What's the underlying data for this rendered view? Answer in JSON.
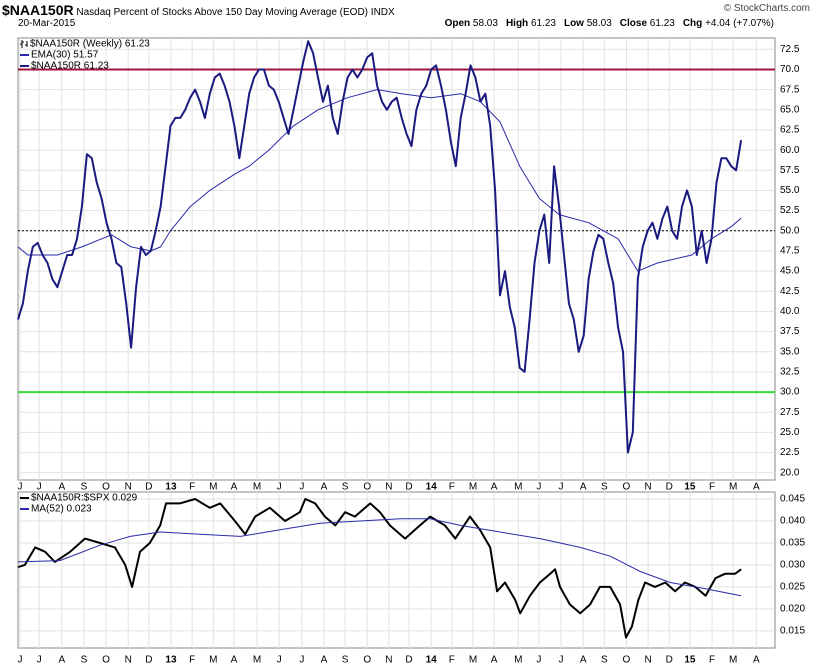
{
  "header": {
    "symbol": "$NAA150R",
    "description": "Nasdaq Percent of Stocks Above 150 Day Moving Average (EOD)",
    "exchange": "INDX",
    "date": "20-Mar-2015",
    "quote": [
      {
        "label": "Open",
        "value": 58.03
      },
      {
        "label": "High",
        "value": 61.23
      },
      {
        "label": "Low",
        "value": 58.03
      },
      {
        "label": "Close",
        "value": 61.23
      },
      {
        "label": "Chg",
        "value": "+4.04 (+7.07%)"
      }
    ],
    "credit": "© StockCharts.com"
  },
  "chart_data": [
    {
      "type": "line",
      "price_label": "$NAA150R (Weekly) 61.23",
      "xlim": [
        0,
        153.9
      ],
      "xticks": [
        {
          "value": 0.4,
          "label": "J"
        },
        {
          "value": 4.3,
          "label": "J"
        },
        {
          "value": 8.9,
          "label": "A"
        },
        {
          "value": 13.4,
          "label": "S"
        },
        {
          "value": 17.9,
          "label": "O"
        },
        {
          "value": 22.4,
          "label": "N"
        },
        {
          "value": 26.6,
          "label": "D"
        },
        {
          "value": 31.1,
          "label": "13"
        },
        {
          "value": 35.4,
          "label": "F"
        },
        {
          "value": 39.7,
          "label": "M"
        },
        {
          "value": 43.9,
          "label": "A"
        },
        {
          "value": 48.6,
          "label": "M"
        },
        {
          "value": 53.1,
          "label": "J"
        },
        {
          "value": 57.7,
          "label": "J"
        },
        {
          "value": 62.2,
          "label": "A"
        },
        {
          "value": 66.5,
          "label": "S"
        },
        {
          "value": 71,
          "label": "O"
        },
        {
          "value": 75.4,
          "label": "N"
        },
        {
          "value": 79.5,
          "label": "D"
        },
        {
          "value": 84,
          "label": "14"
        },
        {
          "value": 88.2,
          "label": "F"
        },
        {
          "value": 92.5,
          "label": "M"
        },
        {
          "value": 96.8,
          "label": "A"
        },
        {
          "value": 101.7,
          "label": "M"
        },
        {
          "value": 105.9,
          "label": "J"
        },
        {
          "value": 110.4,
          "label": "J"
        },
        {
          "value": 114.9,
          "label": "A"
        },
        {
          "value": 119.2,
          "label": "S"
        },
        {
          "value": 123.7,
          "label": "O"
        },
        {
          "value": 128.1,
          "label": "N"
        },
        {
          "value": 132.4,
          "label": "D"
        },
        {
          "value": 136.6,
          "label": "15"
        },
        {
          "value": 141.1,
          "label": "F"
        },
        {
          "value": 145.4,
          "label": "M"
        },
        {
          "value": 150.1,
          "label": "A"
        }
      ],
      "ylim": [
        19.1,
        73.9
      ],
      "yticks": [
        {
          "value": 20,
          "label": "20.0"
        },
        22.5,
        {
          "value": 25,
          "label": "25.0"
        },
        27.5,
        {
          "value": 30,
          "label": "30.0"
        },
        32.5,
        {
          "value": 35,
          "label": "35.0"
        },
        37.5,
        {
          "value": 40,
          "label": "40.0"
        },
        42.5,
        {
          "value": 45,
          "label": "45.0"
        },
        47.5,
        {
          "value": 50,
          "label": "50.0"
        },
        52.5,
        {
          "value": 55,
          "label": "55.0"
        },
        57.5,
        {
          "value": 60,
          "label": "60.0"
        },
        62.5,
        {
          "value": 65,
          "label": "65.0"
        },
        67.5,
        {
          "value": 70,
          "label": "70.0"
        },
        72.5
      ],
      "grid": true,
      "hlines": [
        {
          "value": 70,
          "color": "#a0143c"
        },
        {
          "value": 30,
          "color": "#33dd33"
        },
        {
          "value": 50,
          "color": "#000000",
          "dash": true
        }
      ],
      "series": [
        {
          "name": "EMA(30) 51.57",
          "color": "#2a2aa8",
          "width": 1,
          "x": [
            0,
            2,
            8,
            13,
            19,
            23,
            27,
            29,
            31,
            35,
            39,
            44,
            47,
            51,
            56,
            61,
            67,
            73,
            78,
            84,
            90,
            94,
            98,
            102,
            106,
            110,
            116,
            122,
            126,
            130,
            137,
            141,
            145,
            147
          ],
          "values": [
            48,
            47,
            47,
            48,
            49.5,
            48,
            47.5,
            48,
            50,
            53,
            55,
            57,
            58,
            60,
            63,
            65,
            66.5,
            67.5,
            67,
            66.5,
            67,
            66,
            63.5,
            58,
            54,
            52,
            51,
            49,
            45,
            46,
            47,
            49,
            50.5,
            51.57
          ]
        },
        {
          "name": "$NAA150R 61.23",
          "color": "#1a1a80",
          "width": 2,
          "x": [
            0,
            1,
            2,
            3,
            4,
            5,
            6,
            7,
            8,
            9,
            10,
            11,
            12,
            13,
            14,
            15,
            16,
            17,
            18,
            19,
            20,
            21,
            22,
            23,
            24,
            25,
            26,
            27,
            28,
            29,
            30,
            31,
            32,
            33,
            34,
            35,
            36,
            37,
            38,
            39,
            40,
            41,
            42,
            43,
            44,
            45,
            46,
            47,
            48,
            49,
            50,
            51,
            52,
            53,
            54,
            55,
            56,
            57,
            58,
            59,
            60,
            61,
            62,
            63,
            64,
            65,
            66,
            67,
            68,
            69,
            70,
            71,
            72,
            73,
            74,
            75,
            76,
            77,
            78,
            79,
            80,
            81,
            82,
            83,
            84,
            85,
            86,
            87,
            88,
            89,
            90,
            91,
            92,
            93,
            94,
            95,
            96,
            97,
            98,
            99,
            100,
            101,
            102,
            103,
            104,
            105,
            106,
            107,
            108,
            109,
            110,
            111,
            112,
            113,
            114,
            115,
            116,
            117,
            118,
            119,
            120,
            121,
            122,
            123,
            124,
            125,
            126,
            127,
            128,
            129,
            130,
            131,
            132,
            133,
            134,
            135,
            136,
            137,
            138,
            139,
            140,
            141,
            142,
            143,
            144,
            145,
            146,
            147
          ],
          "values": [
            39,
            41,
            45,
            48,
            48.5,
            47,
            46,
            44,
            43,
            45,
            47,
            47,
            49,
            53,
            59.5,
            59,
            56,
            54,
            51,
            49,
            46,
            45.5,
            41,
            35.5,
            43,
            48,
            47,
            47.5,
            50,
            53,
            58,
            63,
            64,
            64,
            65,
            66.5,
            67.5,
            66,
            64,
            67,
            69,
            69.5,
            68,
            66,
            63,
            59,
            63,
            67,
            69,
            70,
            70,
            68,
            67.5,
            66,
            64,
            62,
            65,
            68,
            71,
            73.5,
            72,
            69,
            66,
            68,
            64,
            62,
            66,
            69,
            70,
            69,
            70,
            71.5,
            72,
            68,
            66,
            65,
            66,
            66.5,
            64,
            62,
            60.5,
            65,
            67,
            68,
            70,
            70.5,
            68,
            65,
            61,
            58,
            64,
            67,
            70.5,
            69,
            66,
            67,
            63,
            55,
            42,
            45,
            40.5,
            38,
            33,
            32.5,
            39,
            46,
            50,
            52,
            46,
            58,
            53,
            47,
            41,
            39,
            35,
            37,
            44,
            47.5,
            49.5,
            49,
            46,
            43.5,
            38,
            35,
            22.5,
            25,
            44,
            48,
            50,
            51,
            49,
            51.5,
            53,
            50,
            49,
            53,
            55,
            53,
            47,
            50,
            46,
            49,
            56,
            59,
            59,
            58,
            57.5,
            61.23
          ]
        }
      ]
    },
    {
      "type": "line",
      "xlim": [
        0,
        153.9
      ],
      "xticks": [
        {
          "value": 0.4,
          "label": "J"
        },
        {
          "value": 4.3,
          "label": "J"
        },
        {
          "value": 8.9,
          "label": "A"
        },
        {
          "value": 13.4,
          "label": "S"
        },
        {
          "value": 17.9,
          "label": "O"
        },
        {
          "value": 22.4,
          "label": "N"
        },
        {
          "value": 26.6,
          "label": "D"
        },
        {
          "value": 31.1,
          "label": "13"
        },
        {
          "value": 35.4,
          "label": "F"
        },
        {
          "value": 39.7,
          "label": "M"
        },
        {
          "value": 43.9,
          "label": "A"
        },
        {
          "value": 48.6,
          "label": "M"
        },
        {
          "value": 53.1,
          "label": "J"
        },
        {
          "value": 57.7,
          "label": "J"
        },
        {
          "value": 62.2,
          "label": "A"
        },
        {
          "value": 66.5,
          "label": "S"
        },
        {
          "value": 71,
          "label": "O"
        },
        {
          "value": 75.4,
          "label": "N"
        },
        {
          "value": 79.5,
          "label": "D"
        },
        {
          "value": 84,
          "label": "14"
        },
        {
          "value": 88.2,
          "label": "F"
        },
        {
          "value": 92.5,
          "label": "M"
        },
        {
          "value": 96.8,
          "label": "A"
        },
        {
          "value": 101.7,
          "label": "M"
        },
        {
          "value": 105.9,
          "label": "J"
        },
        {
          "value": 110.4,
          "label": "J"
        },
        {
          "value": 114.9,
          "label": "A"
        },
        {
          "value": 119.2,
          "label": "S"
        },
        {
          "value": 123.7,
          "label": "O"
        },
        {
          "value": 128.1,
          "label": "N"
        },
        {
          "value": 132.4,
          "label": "D"
        },
        {
          "value": 136.6,
          "label": "15"
        },
        {
          "value": 141.1,
          "label": "F"
        },
        {
          "value": 145.4,
          "label": "M"
        },
        {
          "value": 150.1,
          "label": "A"
        }
      ],
      "ylim": [
        0.0111,
        0.0466
      ],
      "yticks": [
        0.015,
        {
          "value": 0.02,
          "label": "0.020"
        },
        0.025,
        {
          "value": 0.03,
          "label": "0.030"
        },
        0.035,
        {
          "value": 0.04,
          "label": "0.040"
        },
        0.045
      ],
      "grid": true,
      "series": [
        {
          "name": "$NAA150R:$SPX 0.029",
          "color": "#000000",
          "width": 2,
          "x": [
            0,
            1.4,
            3.5,
            5.5,
            7.5,
            10.6,
            13.6,
            16.7,
            19.7,
            21.8,
            23.2,
            24.8,
            26.8,
            28.9,
            30.1,
            32.9,
            36,
            39,
            41.1,
            44.1,
            46.2,
            48.2,
            51.2,
            54.3,
            57.3,
            58.4,
            60.4,
            62.4,
            64.5,
            66.5,
            68.5,
            71.6,
            73.6,
            75.6,
            78.7,
            81.7,
            83.8,
            86.8,
            88.9,
            91.9,
            93.9,
            96,
            97.4,
            99,
            101.1,
            102.1,
            104.1,
            106.1,
            108.2,
            109.2,
            110.2,
            112.2,
            114.3,
            116.3,
            118.3,
            120.4,
            122.4,
            123.6,
            124.8,
            126.1,
            127.5,
            129.5,
            131.6,
            133.6,
            135.6,
            137.7,
            139.8,
            141.8,
            143.8,
            145.8,
            147
          ],
          "values": [
            0.0295,
            0.03,
            0.034,
            0.033,
            0.0307,
            0.033,
            0.036,
            0.035,
            0.034,
            0.03,
            0.025,
            0.033,
            0.035,
            0.039,
            0.044,
            0.044,
            0.045,
            0.043,
            0.044,
            0.04,
            0.037,
            0.041,
            0.043,
            0.04,
            0.042,
            0.045,
            0.044,
            0.041,
            0.039,
            0.042,
            0.041,
            0.044,
            0.042,
            0.039,
            0.036,
            0.039,
            0.041,
            0.039,
            0.036,
            0.041,
            0.038,
            0.034,
            0.024,
            0.026,
            0.022,
            0.019,
            0.023,
            0.026,
            0.028,
            0.029,
            0.025,
            0.021,
            0.019,
            0.021,
            0.025,
            0.025,
            0.021,
            0.0135,
            0.016,
            0.022,
            0.026,
            0.025,
            0.026,
            0.024,
            0.026,
            0.025,
            0.023,
            0.027,
            0.028,
            0.028,
            0.029
          ]
        },
        {
          "name": "MA(52) 0.023",
          "color": "#2a2aa8",
          "width": 1,
          "x": [
            0,
            8.5,
            16.7,
            22.8,
            28.9,
            37,
            45.2,
            53.3,
            61.4,
            69.5,
            77.7,
            83.8,
            89.9,
            98,
            106.1,
            114.3,
            120.4,
            126.5,
            132.6,
            138.7,
            147
          ],
          "values": [
            0.0307,
            0.031,
            0.0345,
            0.0365,
            0.0375,
            0.037,
            0.0365,
            0.038,
            0.0395,
            0.04,
            0.0405,
            0.0405,
            0.039,
            0.0375,
            0.036,
            0.034,
            0.032,
            0.0285,
            0.026,
            0.0248,
            0.023
          ]
        }
      ]
    }
  ]
}
